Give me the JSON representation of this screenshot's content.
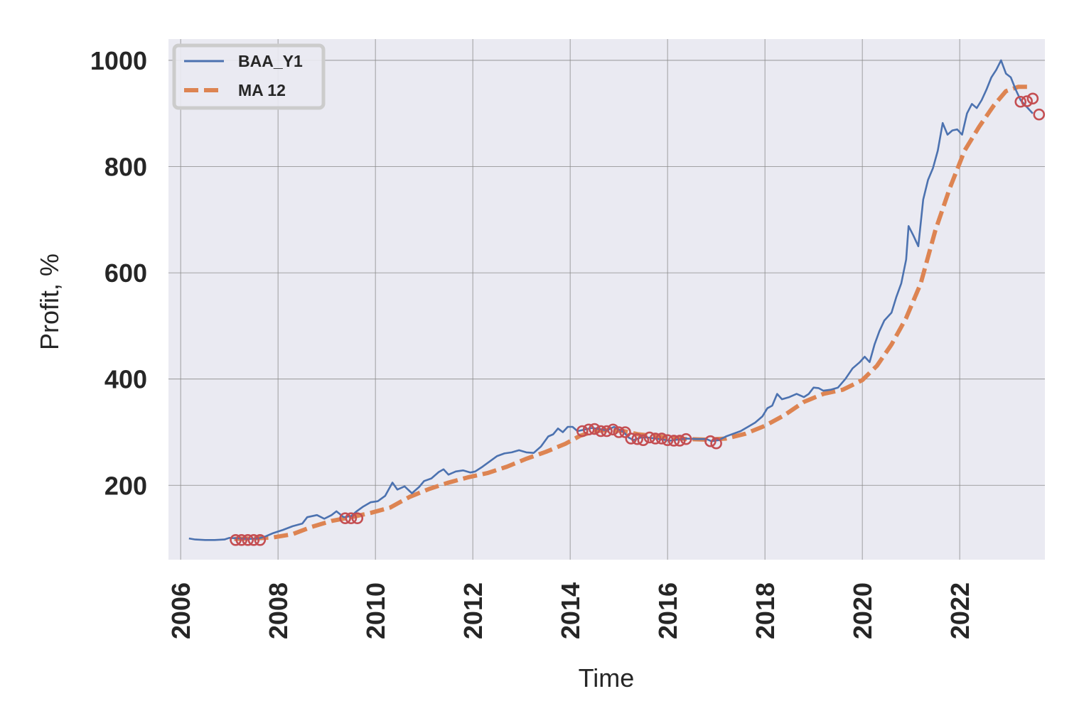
{
  "chart_data": {
    "type": "line",
    "xlabel": "Time",
    "ylabel": "Profit, %",
    "xlim": [
      2005.75,
      2023.75
    ],
    "ylim": [
      60,
      1040
    ],
    "x_ticks": [
      "2006",
      "2008",
      "2010",
      "2012",
      "2014",
      "2016",
      "2018",
      "2020",
      "2022"
    ],
    "y_ticks": [
      "200",
      "400",
      "600",
      "800",
      "1000"
    ],
    "grid": true,
    "legend_position": "top-left",
    "colors": {
      "series1": "#4c72b0",
      "series2": "#dd8452",
      "markers": "#c44e52",
      "background": "#eaeaf2",
      "grid": "#8a8a8a"
    },
    "series": [
      {
        "name": "BAA_Y1",
        "style": "solid",
        "points": [
          [
            2006.17,
            100
          ],
          [
            2006.3,
            98
          ],
          [
            2006.5,
            97
          ],
          [
            2006.7,
            97
          ],
          [
            2006.9,
            98
          ],
          [
            2007.0,
            101
          ],
          [
            2007.2,
            100
          ],
          [
            2007.4,
            99
          ],
          [
            2007.6,
            100
          ],
          [
            2007.75,
            104
          ],
          [
            2007.9,
            110
          ],
          [
            2008.1,
            116
          ],
          [
            2008.3,
            123
          ],
          [
            2008.5,
            128
          ],
          [
            2008.6,
            140
          ],
          [
            2008.8,
            144
          ],
          [
            2008.95,
            137
          ],
          [
            2009.1,
            144
          ],
          [
            2009.2,
            151
          ],
          [
            2009.35,
            140
          ],
          [
            2009.5,
            142
          ],
          [
            2009.6,
            150
          ],
          [
            2009.75,
            160
          ],
          [
            2009.9,
            168
          ],
          [
            2010.05,
            170
          ],
          [
            2010.2,
            180
          ],
          [
            2010.35,
            205
          ],
          [
            2010.45,
            192
          ],
          [
            2010.6,
            198
          ],
          [
            2010.75,
            185
          ],
          [
            2010.9,
            197
          ],
          [
            2011.0,
            208
          ],
          [
            2011.15,
            213
          ],
          [
            2011.3,
            225
          ],
          [
            2011.4,
            230
          ],
          [
            2011.5,
            220
          ],
          [
            2011.65,
            226
          ],
          [
            2011.8,
            228
          ],
          [
            2011.95,
            224
          ],
          [
            2012.05,
            226
          ],
          [
            2012.2,
            235
          ],
          [
            2012.35,
            245
          ],
          [
            2012.5,
            255
          ],
          [
            2012.65,
            260
          ],
          [
            2012.8,
            262
          ],
          [
            2012.95,
            266
          ],
          [
            2013.1,
            262
          ],
          [
            2013.25,
            261
          ],
          [
            2013.4,
            273
          ],
          [
            2013.55,
            292
          ],
          [
            2013.65,
            296
          ],
          [
            2013.75,
            307
          ],
          [
            2013.85,
            300
          ],
          [
            2013.95,
            310
          ],
          [
            2014.05,
            310
          ],
          [
            2014.15,
            302
          ],
          [
            2014.3,
            305
          ],
          [
            2014.45,
            308
          ],
          [
            2014.6,
            306
          ],
          [
            2014.75,
            303
          ],
          [
            2014.9,
            310
          ],
          [
            2015.0,
            305
          ],
          [
            2015.1,
            300
          ],
          [
            2015.2,
            290
          ],
          [
            2015.3,
            285
          ],
          [
            2015.45,
            290
          ],
          [
            2015.6,
            290
          ],
          [
            2015.75,
            288
          ],
          [
            2015.9,
            286
          ],
          [
            2016.05,
            284
          ],
          [
            2016.2,
            286
          ],
          [
            2016.4,
            288
          ],
          [
            2016.6,
            287
          ],
          [
            2016.8,
            287
          ],
          [
            2016.9,
            283
          ],
          [
            2017.05,
            285
          ],
          [
            2017.2,
            292
          ],
          [
            2017.35,
            297
          ],
          [
            2017.5,
            302
          ],
          [
            2017.65,
            310
          ],
          [
            2017.8,
            318
          ],
          [
            2017.95,
            330
          ],
          [
            2018.05,
            345
          ],
          [
            2018.15,
            350
          ],
          [
            2018.25,
            372
          ],
          [
            2018.35,
            362
          ],
          [
            2018.5,
            366
          ],
          [
            2018.65,
            372
          ],
          [
            2018.8,
            366
          ],
          [
            2018.9,
            372
          ],
          [
            2019.0,
            384
          ],
          [
            2019.1,
            383
          ],
          [
            2019.2,
            378
          ],
          [
            2019.35,
            380
          ],
          [
            2019.5,
            384
          ],
          [
            2019.65,
            400
          ],
          [
            2019.8,
            420
          ],
          [
            2019.95,
            432
          ],
          [
            2020.05,
            442
          ],
          [
            2020.15,
            432
          ],
          [
            2020.25,
            465
          ],
          [
            2020.35,
            490
          ],
          [
            2020.45,
            510
          ],
          [
            2020.6,
            525
          ],
          [
            2020.7,
            555
          ],
          [
            2020.8,
            580
          ],
          [
            2020.9,
            625
          ],
          [
            2020.95,
            688
          ],
          [
            2021.05,
            670
          ],
          [
            2021.15,
            650
          ],
          [
            2021.25,
            738
          ],
          [
            2021.35,
            775
          ],
          [
            2021.45,
            797
          ],
          [
            2021.55,
            830
          ],
          [
            2021.65,
            882
          ],
          [
            2021.75,
            860
          ],
          [
            2021.85,
            868
          ],
          [
            2021.95,
            870
          ],
          [
            2022.05,
            860
          ],
          [
            2022.15,
            900
          ],
          [
            2022.25,
            918
          ],
          [
            2022.35,
            910
          ],
          [
            2022.45,
            925
          ],
          [
            2022.55,
            945
          ],
          [
            2022.65,
            968
          ],
          [
            2022.75,
            982
          ],
          [
            2022.85,
            1000
          ],
          [
            2022.95,
            975
          ],
          [
            2023.05,
            968
          ],
          [
            2023.15,
            945
          ],
          [
            2023.25,
            925
          ],
          [
            2023.35,
            915
          ],
          [
            2023.5,
            900
          ]
        ]
      },
      {
        "name": "MA 12",
        "style": "dashed",
        "points": [
          [
            2007.1,
            99
          ],
          [
            2007.5,
            100
          ],
          [
            2007.9,
            102
          ],
          [
            2008.3,
            108
          ],
          [
            2008.7,
            122
          ],
          [
            2009.1,
            133
          ],
          [
            2009.5,
            140
          ],
          [
            2009.9,
            148
          ],
          [
            2010.3,
            158
          ],
          [
            2010.7,
            178
          ],
          [
            2011.1,
            193
          ],
          [
            2011.5,
            205
          ],
          [
            2011.9,
            215
          ],
          [
            2012.3,
            223
          ],
          [
            2012.7,
            235
          ],
          [
            2013.1,
            250
          ],
          [
            2013.5,
            263
          ],
          [
            2013.9,
            278
          ],
          [
            2014.2,
            293
          ],
          [
            2014.5,
            302
          ],
          [
            2014.8,
            304
          ],
          [
            2015.1,
            302
          ],
          [
            2015.4,
            296
          ],
          [
            2015.7,
            293
          ],
          [
            2016.0,
            290
          ],
          [
            2016.4,
            287
          ],
          [
            2016.8,
            286
          ],
          [
            2017.2,
            288
          ],
          [
            2017.6,
            297
          ],
          [
            2018.0,
            312
          ],
          [
            2018.4,
            332
          ],
          [
            2018.8,
            357
          ],
          [
            2019.2,
            372
          ],
          [
            2019.6,
            380
          ],
          [
            2020.0,
            398
          ],
          [
            2020.3,
            425
          ],
          [
            2020.6,
            465
          ],
          [
            2020.9,
            515
          ],
          [
            2021.2,
            580
          ],
          [
            2021.5,
            680
          ],
          [
            2021.8,
            760
          ],
          [
            2022.1,
            830
          ],
          [
            2022.4,
            875
          ],
          [
            2022.7,
            915
          ],
          [
            2022.95,
            942
          ],
          [
            2023.2,
            950
          ],
          [
            2023.45,
            950
          ]
        ]
      }
    ],
    "highlighted_points": [
      [
        2007.13,
        97
      ],
      [
        2007.25,
        97
      ],
      [
        2007.38,
        97
      ],
      [
        2007.5,
        97
      ],
      [
        2007.63,
        97
      ],
      [
        2009.38,
        138
      ],
      [
        2009.5,
        138
      ],
      [
        2009.63,
        138
      ],
      [
        2014.25,
        302
      ],
      [
        2014.38,
        305
      ],
      [
        2014.5,
        306
      ],
      [
        2014.63,
        302
      ],
      [
        2014.75,
        302
      ],
      [
        2014.88,
        305
      ],
      [
        2015.0,
        300
      ],
      [
        2015.13,
        300
      ],
      [
        2015.25,
        288
      ],
      [
        2015.38,
        287
      ],
      [
        2015.5,
        285
      ],
      [
        2015.63,
        290
      ],
      [
        2015.75,
        288
      ],
      [
        2015.88,
        288
      ],
      [
        2016.0,
        285
      ],
      [
        2016.13,
        284
      ],
      [
        2016.25,
        284
      ],
      [
        2016.38,
        287
      ],
      [
        2016.88,
        283
      ],
      [
        2017.0,
        279
      ],
      [
        2023.25,
        922
      ],
      [
        2023.38,
        923
      ],
      [
        2023.5,
        928
      ],
      [
        2023.63,
        898
      ]
    ]
  }
}
